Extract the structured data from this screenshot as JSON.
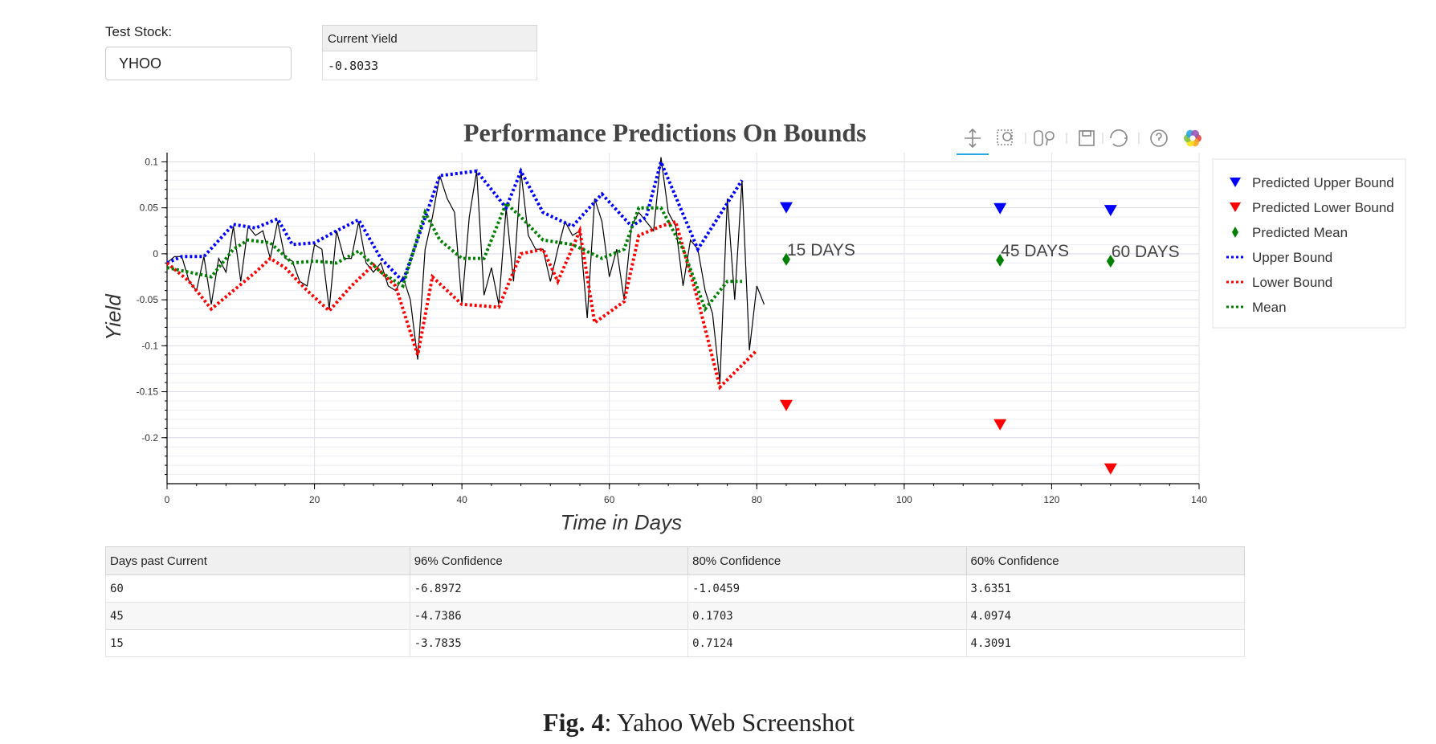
{
  "stock": {
    "label": "Test Stock:",
    "value": "YHOO"
  },
  "current_yield": {
    "header": "Current Yield",
    "value": "-0.8033"
  },
  "toolbar": [
    "pan-icon",
    "box-zoom-icon",
    "wheel-zoom-icon",
    "save-icon",
    "reset-icon",
    "help-icon",
    "bokeh-logo-icon"
  ],
  "colors": {
    "upper": "#0000ff",
    "lower": "#ff0000",
    "mean": "#008000",
    "actual": "#000000"
  },
  "chart_data": {
    "type": "line",
    "title": "Performance  Predictions On  Bounds",
    "xlabel": "Time in Days",
    "ylabel": "Yield",
    "xlim": [
      0,
      140
    ],
    "ylim": [
      -0.25,
      0.11
    ],
    "grid": true,
    "legend_position": "right",
    "x_ticks": [
      0,
      20,
      40,
      60,
      80,
      100,
      120,
      140
    ],
    "y_ticks": [
      0.1,
      0.05,
      0,
      -0.05,
      -0.1,
      -0.15,
      -0.2
    ],
    "y_tick_labels": [
      "0.1",
      "0.05",
      "0",
      "-0.05",
      "-0.1",
      "-0.15",
      "-0.2"
    ],
    "series": [
      {
        "name": "Actual",
        "style": "solid",
        "x": [
          0,
          1,
          2,
          3,
          4,
          5,
          6,
          7,
          8,
          9,
          10,
          11,
          12,
          13,
          14,
          15,
          16,
          17,
          18,
          19,
          20,
          21,
          22,
          23,
          24,
          25,
          26,
          27,
          28,
          29,
          30,
          31,
          32,
          33,
          34,
          35,
          36,
          37,
          38,
          39,
          40,
          41,
          42,
          43,
          44,
          45,
          46,
          47,
          48,
          49,
          50,
          51,
          52,
          53,
          54,
          55,
          56,
          57,
          58,
          59,
          60,
          61,
          62,
          63,
          64,
          65,
          66,
          67,
          68,
          69,
          70,
          71,
          72,
          73,
          74,
          75,
          76,
          77,
          78,
          79,
          80,
          81
        ],
        "y": [
          -0.01,
          -0.003,
          -0.003,
          -0.03,
          -0.04,
          -0.003,
          -0.055,
          -0.005,
          -0.02,
          0.03,
          -0.03,
          0.03,
          0.02,
          0.025,
          -0.005,
          0.035,
          -0.005,
          -0.008,
          -0.03,
          -0.035,
          0.01,
          0.005,
          -0.06,
          0.025,
          -0.005,
          -0.005,
          0.035,
          -0.01,
          -0.02,
          -0.01,
          -0.035,
          -0.04,
          -0.025,
          -0.05,
          -0.115,
          0.005,
          0.04,
          0.085,
          0.06,
          0.045,
          -0.055,
          0.04,
          0.09,
          -0.045,
          -0.015,
          -0.055,
          0.05,
          -0.03,
          0.09,
          0.02,
          0.005,
          0.005,
          -0.03,
          0.005,
          0.035,
          0.02,
          0.025,
          -0.07,
          0.06,
          0.035,
          -0.025,
          0.005,
          -0.05,
          0.03,
          0.045,
          0.035,
          0.025,
          0.105,
          0.045,
          0.03,
          -0.035,
          0.015,
          0.005,
          -0.04,
          -0.065,
          -0.14,
          0.06,
          -0.05,
          0.08,
          -0.105,
          -0.035,
          -0.055
        ]
      },
      {
        "name": "Upper Bound",
        "style": "dotted",
        "x": [
          0,
          2,
          5,
          9,
          12,
          15,
          17,
          20,
          23,
          26,
          29,
          32,
          37,
          42,
          46,
          48,
          51,
          55,
          59,
          63,
          65,
          67,
          72,
          78
        ],
        "y": [
          -0.01,
          -0.003,
          -0.003,
          0.032,
          0.028,
          0.038,
          0.01,
          0.012,
          0.025,
          0.037,
          -0.005,
          -0.03,
          0.085,
          0.09,
          0.05,
          0.09,
          0.045,
          0.03,
          0.065,
          0.03,
          0.04,
          0.1,
          0.005,
          0.08
        ]
      },
      {
        "name": "Lower Bound",
        "style": "dotted",
        "x": [
          0,
          3,
          6,
          9,
          12,
          14,
          16,
          19,
          22,
          25,
          28,
          31,
          34,
          36,
          40,
          45,
          48,
          51,
          53,
          56,
          58,
          62,
          64,
          67,
          69,
          72,
          75,
          80
        ],
        "y": [
          -0.01,
          -0.03,
          -0.06,
          -0.04,
          -0.02,
          -0.005,
          -0.015,
          -0.04,
          -0.062,
          -0.035,
          -0.012,
          -0.035,
          -0.11,
          -0.025,
          -0.055,
          -0.058,
          0,
          0.005,
          -0.03,
          0.025,
          -0.075,
          -0.052,
          0.02,
          0.03,
          0.035,
          -0.05,
          -0.145,
          -0.105
        ]
      },
      {
        "name": "Mean",
        "style": "dotted",
        "x": [
          0,
          3,
          6,
          9,
          11,
          14,
          17,
          20,
          23,
          26,
          29,
          32,
          35,
          37,
          40,
          43,
          46,
          48,
          51,
          55,
          59,
          62,
          64,
          67,
          70,
          73,
          76,
          78
        ],
        "y": [
          -0.015,
          -0.02,
          -0.025,
          0.005,
          0.015,
          0.012,
          -0.01,
          -0.008,
          -0.01,
          0.003,
          -0.02,
          -0.035,
          0.045,
          0.015,
          -0.005,
          -0.005,
          0.055,
          0.04,
          0.015,
          0.01,
          -0.005,
          0.005,
          0.05,
          0.05,
          0.005,
          -0.06,
          -0.03,
          -0.03
        ]
      }
    ],
    "predictions": [
      {
        "label": "15 DAYS",
        "x": 84,
        "upper": 0.05,
        "lower": -0.165,
        "mean": -0.006
      },
      {
        "label": "45 DAYS",
        "x": 113,
        "upper": 0.049,
        "lower": -0.186,
        "mean": -0.007
      },
      {
        "label": "60 DAYS",
        "x": 128,
        "upper": 0.047,
        "lower": -0.234,
        "mean": -0.008
      }
    ],
    "legend": [
      {
        "label": "Predicted Upper Bound",
        "kind": "tri",
        "color": "#0000ff"
      },
      {
        "label": "Predicted Lower Bound",
        "kind": "tri",
        "color": "#ff0000"
      },
      {
        "label": "Predicted Mean",
        "kind": "diamond",
        "color": "#008000"
      },
      {
        "label": "Upper Bound",
        "kind": "dot-line",
        "color": "#0000ff"
      },
      {
        "label": "Lower Bound",
        "kind": "dot-line",
        "color": "#ff0000"
      },
      {
        "label": "Mean",
        "kind": "dot-line",
        "color": "#008000"
      }
    ]
  },
  "table": {
    "columns": [
      "Days past Current",
      "96% Confidence",
      "80% Confidence",
      "60% Confidence"
    ],
    "rows": [
      [
        "60",
        "-6.8972",
        "-1.0459",
        "3.6351"
      ],
      [
        "45",
        "-4.7386",
        "0.1703",
        "4.0974"
      ],
      [
        "15",
        "-3.7835",
        "0.7124",
        "4.3091"
      ]
    ]
  },
  "caption": {
    "label": "Fig. 4",
    "text": ": Yahoo Web Screenshot"
  }
}
